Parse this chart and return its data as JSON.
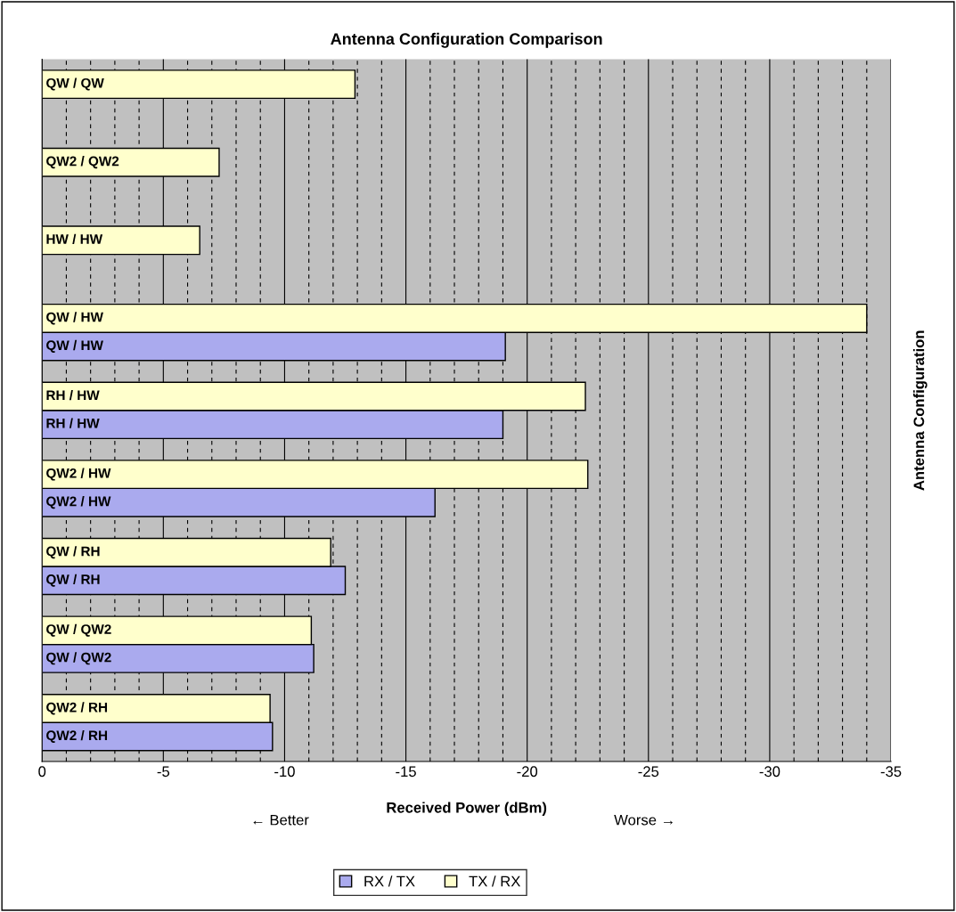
{
  "chart_data": {
    "type": "bar",
    "orientation": "horizontal",
    "title": "Antenna Configuration Comparison",
    "xlabel": "Received Power (dBm)",
    "ylabel": "Antenna Configuration",
    "annotations": [
      "← Better",
      "Worse →"
    ],
    "categories": [
      "QW / QW",
      "QW2 / QW2",
      "HW / HW",
      "QW / HW",
      "RH / HW",
      "QW2 / HW",
      "QW / RH",
      "QW / QW2",
      "QW2 / RH"
    ],
    "series": [
      {
        "name": "RX / TX",
        "color": "#aaaaee",
        "values": [
          null,
          null,
          null,
          -19.1,
          -19.0,
          -16.2,
          -12.5,
          -11.2,
          -9.5
        ]
      },
      {
        "name": "TX / RX",
        "color": "#ffffcc",
        "values": [
          -12.9,
          -7.3,
          -6.5,
          -34.0,
          -22.4,
          -22.5,
          -11.9,
          -11.1,
          -9.4
        ]
      }
    ],
    "xlim": [
      0,
      -35
    ],
    "xticks": [
      0,
      {
        "value": -1,
        "label": null
      },
      {
        "value": -2,
        "label": null
      },
      {
        "value": -3,
        "label": null
      },
      {
        "value": -4,
        "label": null
      },
      -5,
      {
        "value": -6,
        "label": null
      },
      {
        "value": -7,
        "label": null
      },
      {
        "value": -8,
        "label": null
      },
      {
        "value": -9,
        "label": null
      },
      -10,
      {
        "value": -11,
        "label": null
      },
      {
        "value": -12,
        "label": null
      },
      {
        "value": -13,
        "label": null
      },
      {
        "value": -14,
        "label": null
      },
      -15,
      {
        "value": -16,
        "label": null
      },
      {
        "value": -17,
        "label": null
      },
      {
        "value": -18,
        "label": null
      },
      {
        "value": -19,
        "label": null
      },
      -20,
      {
        "value": -21,
        "label": null
      },
      {
        "value": -22,
        "label": null
      },
      {
        "value": -23,
        "label": null
      },
      {
        "value": -24,
        "label": null
      },
      -25,
      {
        "value": -26,
        "label": null
      },
      {
        "value": -27,
        "label": null
      },
      {
        "value": -28,
        "label": null
      },
      {
        "value": -29,
        "label": null
      },
      -30,
      {
        "value": -31,
        "label": null
      },
      {
        "value": -32,
        "label": null
      },
      {
        "value": -33,
        "label": null
      },
      {
        "value": -34,
        "label": null
      },
      -35
    ],
    "grid": "x",
    "legend": "bottom",
    "tick_labels": "x"
  }
}
